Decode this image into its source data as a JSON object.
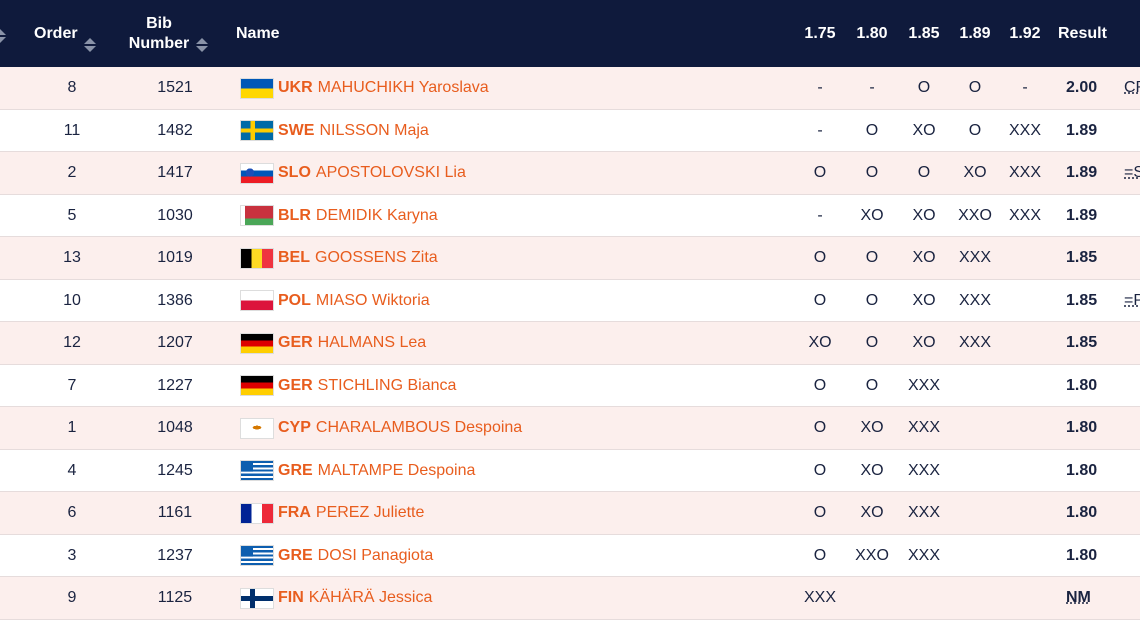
{
  "header": {
    "order": "Order",
    "bib": "Bib Number",
    "name": "Name",
    "heights": [
      "1.75",
      "1.80",
      "1.85",
      "1.89",
      "1.92"
    ],
    "result": "Result"
  },
  "rows": [
    {
      "order": "8",
      "bib": "1521",
      "code": "UKR",
      "name": "MAHUCHIKH Yaroslava",
      "attempts": [
        "-",
        "-",
        "O",
        "O",
        "-"
      ],
      "result": "2.00",
      "note": "CR"
    },
    {
      "order": "11",
      "bib": "1482",
      "code": "SWE",
      "name": "NILSSON Maja",
      "attempts": [
        "-",
        "O",
        "XO",
        "O",
        "XXX"
      ],
      "result": "1.89"
    },
    {
      "order": "2",
      "bib": "1417",
      "code": "SLO",
      "name": "APOSTOLOVSKI Lia",
      "attempts": [
        "O",
        "O",
        "O",
        "XO",
        "XXX"
      ],
      "result": "1.89",
      "note": "=SB"
    },
    {
      "order": "5",
      "bib": "1030",
      "code": "BLR",
      "name": "DEMIDIK Karyna",
      "attempts": [
        "-",
        "XO",
        "XO",
        "XXO",
        "XXX"
      ],
      "result": "1.89"
    },
    {
      "order": "13",
      "bib": "1019",
      "code": "BEL",
      "name": "GOOSSENS Zita",
      "attempts": [
        "O",
        "O",
        "XO",
        "XXX",
        null
      ],
      "result": "1.85"
    },
    {
      "order": "10",
      "bib": "1386",
      "code": "POL",
      "name": "MIASO Wiktoria",
      "attempts": [
        "O",
        "O",
        "XO",
        "XXX",
        null
      ],
      "result": "1.85",
      "note": "=PB"
    },
    {
      "order": "12",
      "bib": "1207",
      "code": "GER",
      "name": "HALMANS Lea",
      "attempts": [
        "XO",
        "O",
        "XO",
        "XXX",
        null
      ],
      "result": "1.85"
    },
    {
      "order": "7",
      "bib": "1227",
      "code": "GER",
      "name": "STICHLING Bianca",
      "attempts": [
        "O",
        "O",
        "XXX",
        null,
        null
      ],
      "result": "1.80"
    },
    {
      "order": "1",
      "bib": "1048",
      "code": "CYP",
      "name": "CHARALAMBOUS Despoina",
      "attempts": [
        "O",
        "XO",
        "XXX",
        null,
        null
      ],
      "result": "1.80"
    },
    {
      "order": "4",
      "bib": "1245",
      "code": "GRE",
      "name": "MALTAMPE Despoina",
      "attempts": [
        "O",
        "XO",
        "XXX",
        null,
        null
      ],
      "result": "1.80"
    },
    {
      "order": "6",
      "bib": "1161",
      "code": "FRA",
      "name": "PEREZ Juliette",
      "attempts": [
        "O",
        "XO",
        "XXX",
        null,
        null
      ],
      "result": "1.80"
    },
    {
      "order": "3",
      "bib": "1237",
      "code": "GRE",
      "name": "DOSI Panagiota",
      "attempts": [
        "O",
        "XXO",
        "XXX",
        null,
        null
      ],
      "result": "1.80"
    },
    {
      "order": "9",
      "bib": "1125",
      "code": "FIN",
      "name": "KÄHÄRÄ Jessica",
      "attempts": [
        "XXX",
        null,
        null,
        null,
        null
      ],
      "result": "NM"
    }
  ]
}
